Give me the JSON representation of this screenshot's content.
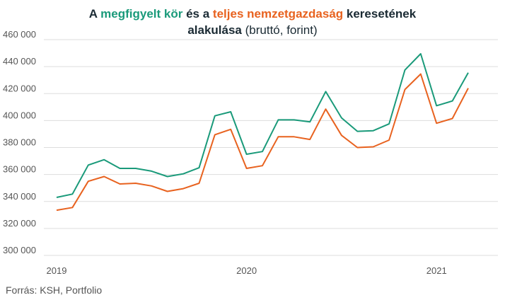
{
  "title": {
    "part1": "A ",
    "part2": "megfigyelt kör",
    "part3": " és a ",
    "part4": "teljes nemzetgazdaság",
    "part5": " keresetének",
    "part6": "alakulása",
    "part7": " (bruttó, forint)"
  },
  "source": "Forrás: KSH, Portfolio",
  "colors": {
    "green": "#1a9a7a",
    "orange": "#e8621f",
    "grid": "#dddddd"
  },
  "chart_data": {
    "type": "line",
    "title": "A megfigyelt kör és a teljes nemzetgazdaság keresetének alakulása (bruttó, forint)",
    "xlabel": "",
    "ylabel": "",
    "ylim": [
      300000,
      460000
    ],
    "yticks": [
      300000,
      320000,
      340000,
      360000,
      380000,
      400000,
      420000,
      440000,
      460000
    ],
    "ytick_labels": [
      "300 000",
      "320 000",
      "340 000",
      "360 000",
      "380 000",
      "400 000",
      "420 000",
      "440 000",
      "460 000"
    ],
    "xticks": [
      {
        "index": 0,
        "label": "2019"
      },
      {
        "index": 12,
        "label": "2020"
      },
      {
        "index": 24,
        "label": "2021"
      }
    ],
    "x": [
      "2019-01",
      "2019-02",
      "2019-03",
      "2019-04",
      "2019-05",
      "2019-06",
      "2019-07",
      "2019-08",
      "2019-09",
      "2019-10",
      "2019-11",
      "2019-12",
      "2020-01",
      "2020-02",
      "2020-03",
      "2020-04",
      "2020-05",
      "2020-06",
      "2020-07",
      "2020-08",
      "2020-09",
      "2020-10",
      "2020-11",
      "2020-12",
      "2021-01",
      "2021-02",
      "2021-03"
    ],
    "grid": true,
    "series": [
      {
        "color": "#1a9a7a",
        "values": [
          343000,
          345500,
          367000,
          371000,
          364500,
          364500,
          362500,
          358500,
          360500,
          365000,
          403500,
          406500,
          375000,
          377000,
          400500,
          400500,
          399000,
          421500,
          402000,
          392000,
          392500,
          397500,
          437500,
          449500,
          411000,
          414500,
          435500
        ]
      },
      {
        "color": "#e8621f",
        "values": [
          333500,
          335500,
          355000,
          358500,
          353000,
          353500,
          351500,
          347500,
          349500,
          353500,
          389500,
          393500,
          364500,
          366500,
          388000,
          388000,
          386000,
          408500,
          389000,
          380000,
          380500,
          385500,
          423000,
          434500,
          398000,
          401500,
          424000
        ]
      }
    ]
  }
}
